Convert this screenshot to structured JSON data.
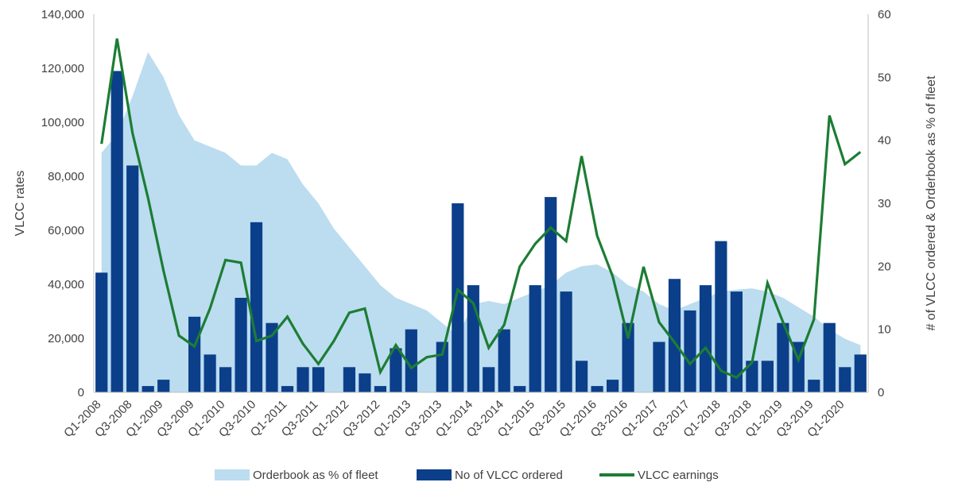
{
  "chart_data": {
    "type": "bar",
    "title": "",
    "ylabel_left": "VLCC rates",
    "ylabel_right": "# of VLCC ordered & Orderbook as % of fleet",
    "ylim_left": [
      0,
      140000
    ],
    "ylim_right": [
      0,
      60
    ],
    "left_ticks": [
      "0",
      "20,000",
      "40,000",
      "60,000",
      "80,000",
      "100,000",
      "120,000",
      "140,000"
    ],
    "right_ticks": [
      "0",
      "10",
      "20",
      "30",
      "40",
      "50",
      "60"
    ],
    "categories": [
      "Q1-2008",
      "Q2-2008",
      "Q3-2008",
      "Q4-2008",
      "Q1-2009",
      "Q2-2009",
      "Q3-2009",
      "Q4-2009",
      "Q1-2010",
      "Q2-2010",
      "Q3-2010",
      "Q4-2010",
      "Q1-2011",
      "Q2-2011",
      "Q3-2011",
      "Q4-2011",
      "Q1-2012",
      "Q2-2012",
      "Q3-2012",
      "Q4-2012",
      "Q1-2013",
      "Q2-2013",
      "Q3-2013",
      "Q4-2013",
      "Q1-2014",
      "Q2-2014",
      "Q3-2014",
      "Q4-2014",
      "Q1-2015",
      "Q2-2015",
      "Q3-2015",
      "Q4-2015",
      "Q1-2016",
      "Q2-2016",
      "Q3-2016",
      "Q4-2016",
      "Q1-2017",
      "Q2-2017",
      "Q3-2017",
      "Q4-2017",
      "Q1-2018",
      "Q2-2018",
      "Q3-2018",
      "Q4-2018",
      "Q1-2019",
      "Q2-2019",
      "Q3-2019",
      "Q4-2019",
      "Q1-2020",
      "Q2-2020"
    ],
    "x_tick_labels": [
      "Q1-2008",
      "Q3-2008",
      "Q1-2009",
      "Q3-2009",
      "Q1-2010",
      "Q3-2010",
      "Q1-2011",
      "Q3-2011",
      "Q1-2012",
      "Q3-2012",
      "Q1-2013",
      "Q3-2013",
      "Q1-2014",
      "Q3-2014",
      "Q1-2015",
      "Q3-2015",
      "Q1-2016",
      "Q3-2016",
      "Q1-2017",
      "Q3-2017",
      "Q1-2018",
      "Q3-2018",
      "Q1-2019",
      "Q3-2019",
      "Q1-2020"
    ],
    "series": [
      {
        "name": "Orderbook as % of fleet",
        "type": "area",
        "axis": "right",
        "color": "#bcdcf0",
        "values": [
          38,
          41,
          47,
          54,
          50,
          44,
          40,
          39,
          38,
          36,
          36,
          38,
          37,
          33,
          30,
          26,
          23,
          20,
          17,
          15,
          14,
          13,
          11,
          9,
          14,
          14.5,
          14,
          15,
          16,
          17,
          19,
          20,
          20.3,
          19,
          17,
          16,
          14,
          13,
          14,
          15,
          16,
          16.3,
          16.5,
          16,
          15,
          13.5,
          12,
          10,
          8.5,
          7.5
        ]
      },
      {
        "name": "No of VLCC ordered",
        "type": "bar",
        "axis": "right",
        "color": "#0b3f8a",
        "values": [
          19,
          51,
          36,
          1,
          2,
          0,
          12,
          6,
          4,
          15,
          27,
          11,
          1,
          4,
          4,
          0,
          4,
          3,
          1,
          7,
          10,
          0,
          8,
          30,
          17,
          4,
          10,
          1,
          17,
          31,
          16,
          5,
          1,
          2,
          11,
          0,
          8,
          18,
          13,
          17,
          24,
          16,
          5,
          5,
          11,
          8,
          2,
          11,
          4,
          6
        ]
      },
      {
        "name": "VLCC earnings",
        "type": "line",
        "axis": "left",
        "color": "#1c7d34",
        "values": [
          92000,
          131000,
          96000,
          72000,
          45000,
          21000,
          17000,
          31000,
          49000,
          48000,
          19000,
          21000,
          28000,
          18000,
          10500,
          19000,
          29500,
          31000,
          7500,
          17500,
          9000,
          13000,
          14000,
          38000,
          33000,
          16500,
          25000,
          46500,
          55000,
          61000,
          56000,
          87500,
          58000,
          43000,
          20000,
          46500,
          26000,
          18500,
          10500,
          16500,
          8000,
          5500,
          11000,
          40500,
          26000,
          12000,
          27000,
          102500,
          84500,
          89000
        ]
      }
    ],
    "legend_position": "bottom",
    "grid": false
  }
}
